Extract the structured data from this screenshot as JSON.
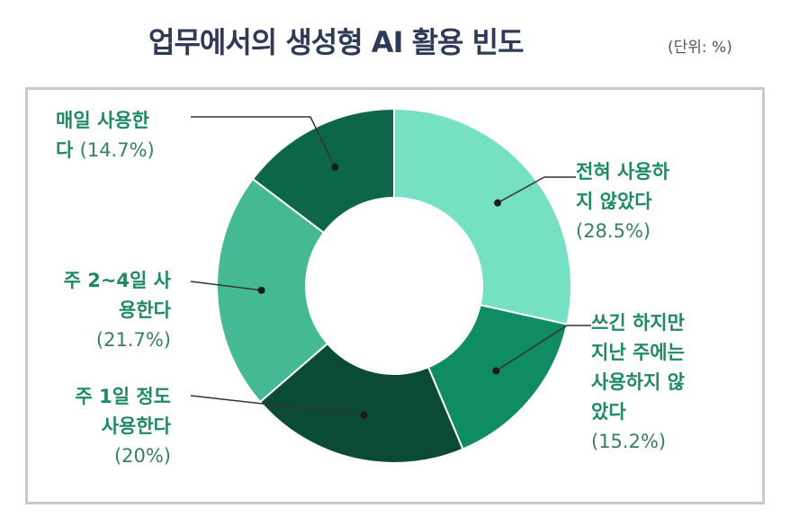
{
  "title": "업무에서의 생성형 AI 활용 빈도",
  "unit": "(단위: %)",
  "colors": {
    "never": "#75e0c2",
    "not_last_week": "#0f8c64",
    "once_a_week": "#0b4a36",
    "two_to_four": "#45b894",
    "daily": "#0d664a",
    "accent_text": "#1d8a5f",
    "leader": "#333333"
  },
  "labels": {
    "never": {
      "line1": "전혀 사용하",
      "line2": "지 않았다",
      "pct": "(28.5%)"
    },
    "not_last_week": {
      "line1": "쓰긴 하지만",
      "line2": "지난 주에는",
      "line3": "사용하지 않",
      "line4": "았다",
      "pct": "(15.2%)"
    },
    "once_a_week": {
      "line1": "주 1일 정도",
      "line2": "사용한다",
      "pct": "(20%)"
    },
    "two_to_four": {
      "line1": "주 2~4일 사",
      "line2": "용한다",
      "pct": "(21.7%)"
    },
    "daily": {
      "line1": "매일 사용한",
      "line2": "다",
      "pct": "(14.7%)"
    }
  },
  "chart_data": {
    "type": "pie",
    "donut": true,
    "title": "업무에서의 생성형 AI 활용 빈도",
    "unit": "%",
    "categories": [
      "전혀 사용하지 않았다",
      "쓰긴 하지만 지난 주에는 사용하지 않았다",
      "주 1일 정도 사용한다",
      "주 2~4일 사용한다",
      "매일 사용한다"
    ],
    "values": [
      28.5,
      15.2,
      20,
      21.7,
      14.7
    ],
    "start": "top",
    "direction": "clockwise"
  }
}
